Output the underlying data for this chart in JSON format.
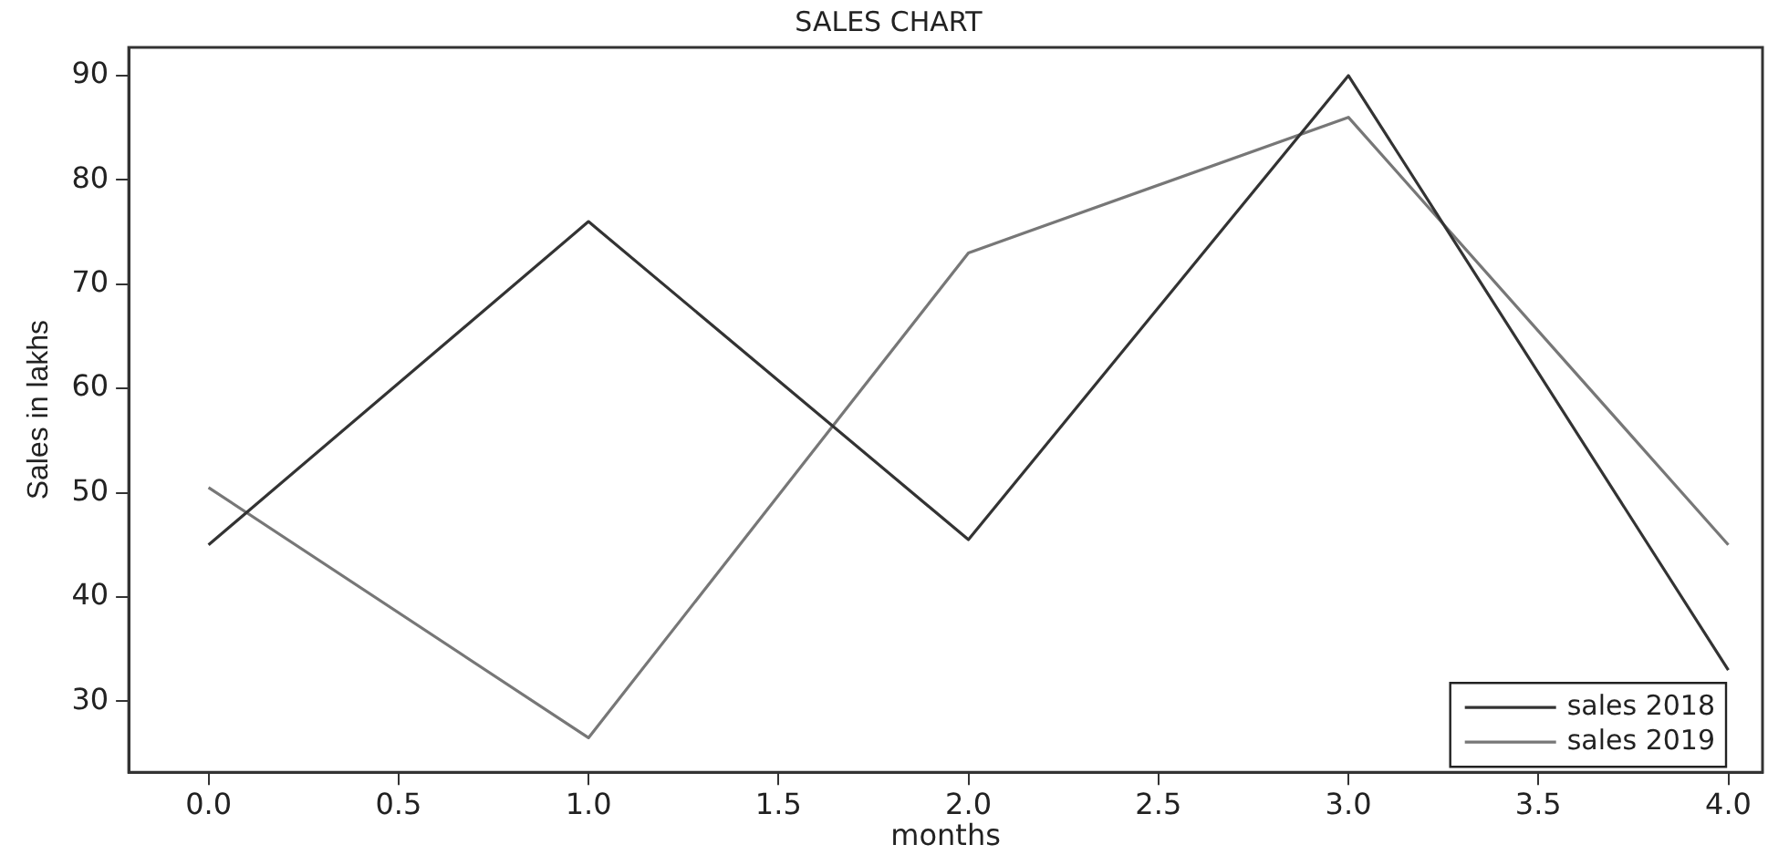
{
  "chart_data": {
    "type": "line",
    "title": "SALES CHART",
    "xlabel": "months",
    "ylabel": "Sales in lakhs",
    "x": [
      0,
      1,
      2,
      3,
      4
    ],
    "series": [
      {
        "name": "sales 2018",
        "color": "#333333",
        "values": [
          45,
          76,
          45.5,
          90,
          33
        ]
      },
      {
        "name": "sales 2019",
        "color": "#777777",
        "values": [
          50.5,
          26.5,
          73,
          86,
          45
        ]
      }
    ],
    "xlim": [
      -0.21,
      4.09
    ],
    "xticks": [
      {
        "value": 0,
        "label": "0.0"
      },
      {
        "value": 0.5,
        "label": "0.5"
      },
      {
        "value": 1,
        "label": "1.0"
      },
      {
        "value": 1.5,
        "label": "1.5"
      },
      {
        "value": 2,
        "label": "2.0"
      },
      {
        "value": 2.5,
        "label": "2.5"
      },
      {
        "value": 3,
        "label": "3.0"
      },
      {
        "value": 3.5,
        "label": "3.5"
      },
      {
        "value": 4,
        "label": "4.0"
      }
    ],
    "ylim": [
      23.2,
      92.7
    ],
    "yticks": [
      30,
      40,
      50,
      60,
      70,
      80,
      90
    ],
    "grid": false,
    "legend": "bottom right",
    "marker": "none",
    "line_style": "solid"
  }
}
